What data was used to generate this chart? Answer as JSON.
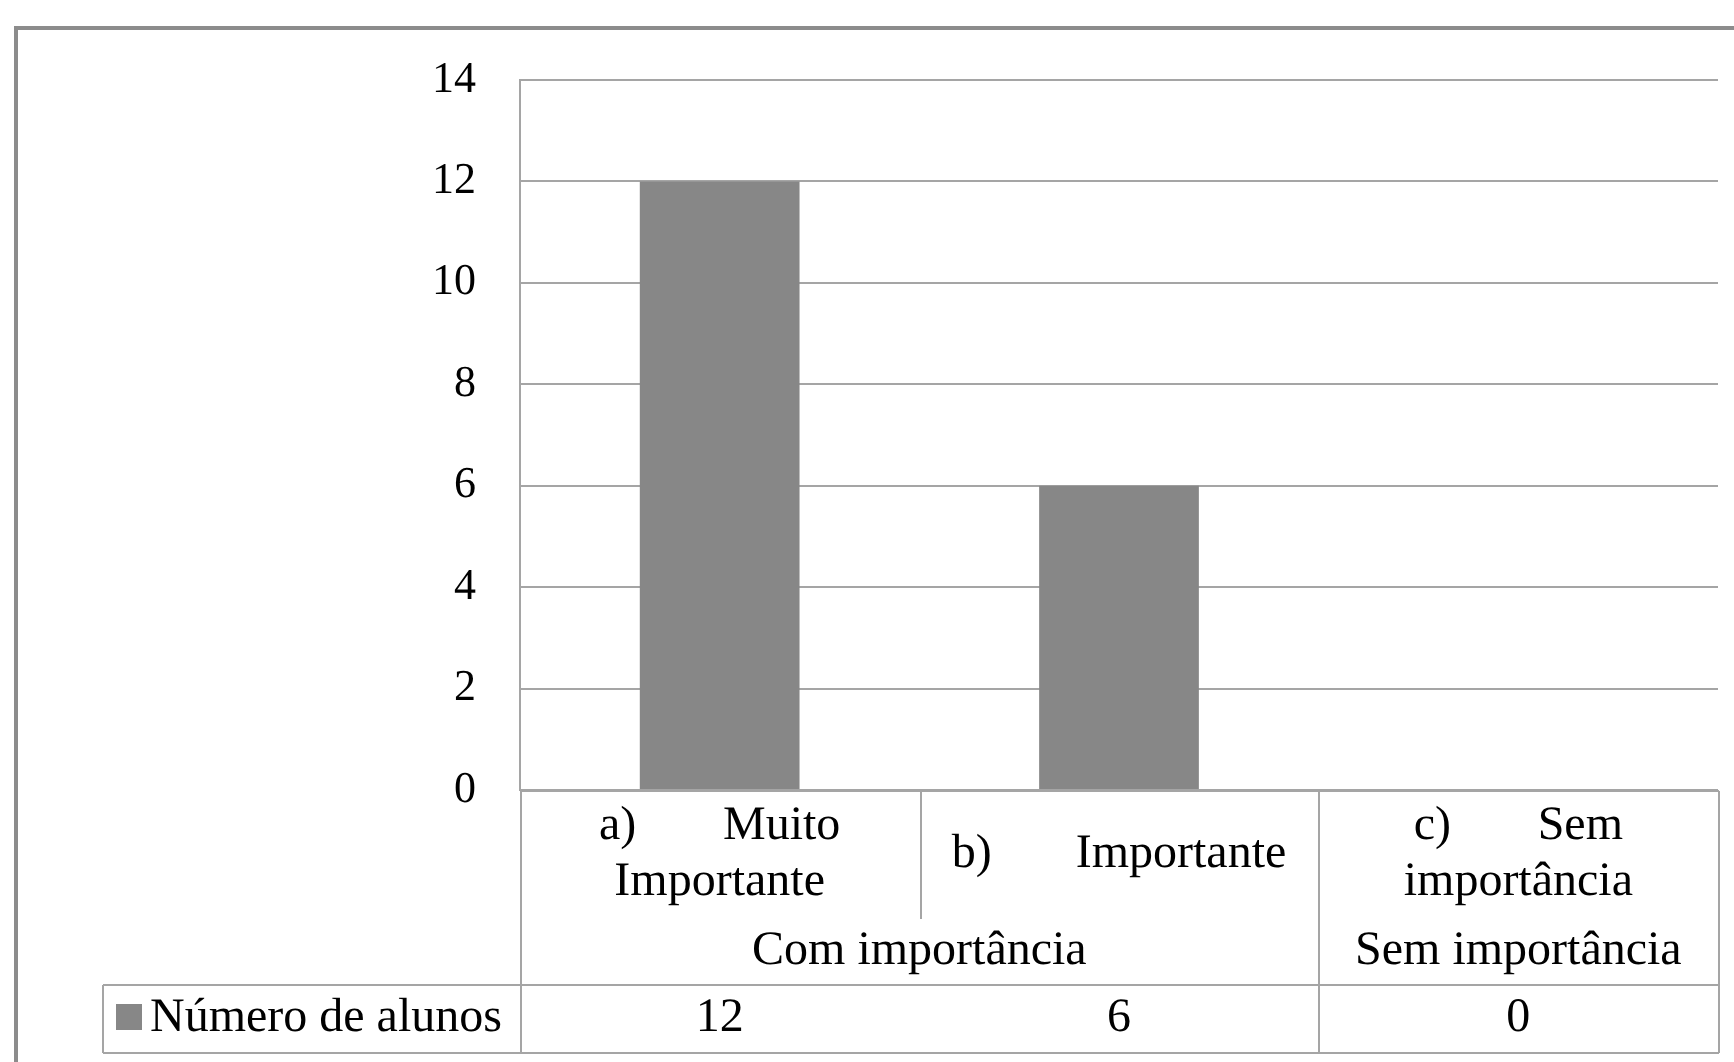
{
  "chart_data": {
    "type": "bar",
    "categories": [
      "a) Muito Importante",
      "b) Importante",
      "c) Sem importância"
    ],
    "series": [
      {
        "name": "Número de alunos",
        "color": "#878787",
        "values": [
          12,
          6,
          0
        ]
      }
    ],
    "ylim": [
      0,
      14
    ],
    "yticks": [
      0,
      2,
      4,
      6,
      8,
      10,
      12,
      14
    ],
    "grid": "y",
    "legend": "bottom",
    "data_labels": true,
    "annotations": [
      "Com importância",
      "Sem importância"
    ]
  }
}
